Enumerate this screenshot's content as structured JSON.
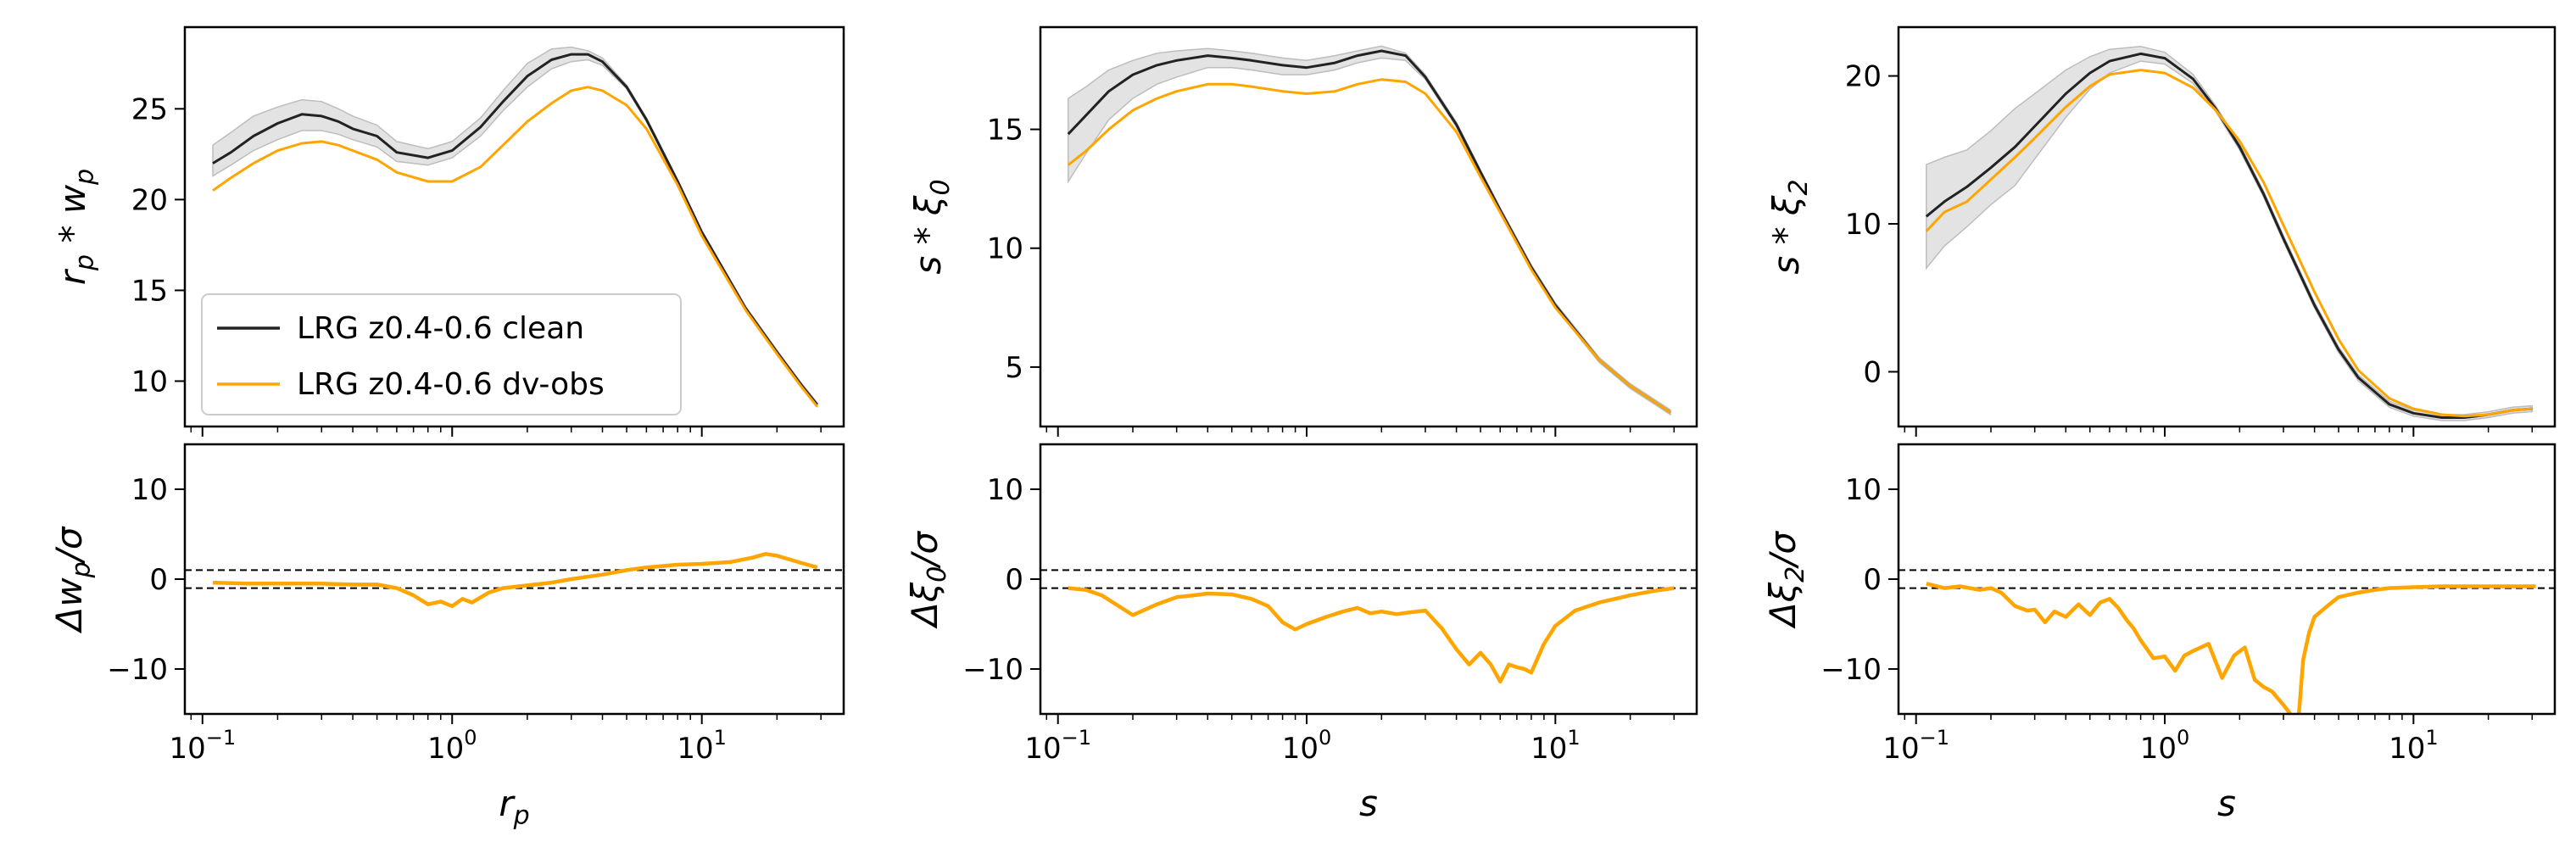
{
  "colors": {
    "clean": "#222222",
    "dvobs": "#FFA500",
    "band": "#d9d9d9",
    "frame": "#000000"
  },
  "legend": {
    "placement": "lower-left",
    "entries": [
      "LRG z0.4-0.6 clean",
      "LRG z0.4-0.6 dv-obs"
    ]
  },
  "chart_data": [
    {
      "type": "line",
      "panel": "top-left",
      "xscale": "log",
      "xlim": [
        0.085,
        37
      ],
      "ylim": [
        7.5,
        29.5
      ],
      "xticks": [
        {
          "v": 0.1,
          "m": "10",
          "e": "−1"
        },
        {
          "v": 1,
          "m": "10",
          "e": "0"
        },
        {
          "v": 10,
          "m": "10",
          "e": "1"
        }
      ],
      "yticks": [
        10,
        15,
        20,
        25
      ],
      "xlabel": "",
      "ylabel": {
        "base": "r",
        "sub": "p",
        "op": " * ",
        "base2": "w",
        "sub2": "p"
      },
      "x": [
        0.11,
        0.13,
        0.16,
        0.2,
        0.25,
        0.3,
        0.35,
        0.4,
        0.5,
        0.6,
        0.8,
        1.0,
        1.3,
        1.6,
        2.0,
        2.5,
        3.0,
        3.5,
        4.0,
        5.0,
        6.0,
        8.0,
        10.0,
        15.0,
        20.0,
        25.0,
        29.0
      ],
      "series": [
        {
          "name": "LRG z0.4-0.6 clean",
          "values": [
            22.0,
            22.6,
            23.5,
            24.2,
            24.7,
            24.6,
            24.3,
            23.9,
            23.5,
            22.6,
            22.3,
            22.7,
            24.0,
            25.4,
            26.8,
            27.7,
            28.0,
            28.0,
            27.6,
            26.2,
            24.4,
            21.0,
            18.2,
            14.0,
            11.6,
            9.8,
            8.7
          ],
          "band_upper": [
            23.0,
            23.7,
            24.6,
            25.1,
            25.5,
            25.4,
            25.0,
            24.6,
            24.1,
            23.2,
            22.8,
            23.2,
            24.5,
            26.0,
            27.5,
            28.3,
            28.4,
            28.2,
            27.8,
            26.3,
            24.5,
            21.1,
            18.3,
            14.1,
            11.7,
            9.9,
            8.8
          ],
          "band_lower": [
            21.3,
            21.9,
            22.7,
            23.3,
            23.8,
            23.8,
            23.6,
            23.3,
            22.9,
            22.1,
            21.9,
            22.3,
            23.5,
            24.9,
            26.2,
            27.2,
            27.6,
            27.7,
            27.4,
            26.1,
            24.3,
            20.9,
            18.1,
            13.9,
            11.5,
            9.7,
            8.6
          ]
        },
        {
          "name": "LRG z0.4-0.6 dv-obs",
          "values": [
            20.5,
            21.2,
            22.0,
            22.7,
            23.1,
            23.2,
            23.0,
            22.7,
            22.2,
            21.5,
            21.0,
            21.0,
            21.8,
            23.0,
            24.3,
            25.3,
            26.0,
            26.2,
            26.0,
            25.2,
            23.9,
            20.8,
            18.0,
            13.9,
            11.5,
            9.7,
            8.6
          ]
        }
      ]
    },
    {
      "type": "line",
      "panel": "top-middle",
      "xscale": "log",
      "xlim": [
        0.085,
        37
      ],
      "ylim": [
        2.5,
        19.3
      ],
      "xticks": [
        {
          "v": 0.1,
          "m": "10",
          "e": "−1"
        },
        {
          "v": 1,
          "m": "10",
          "e": "0"
        },
        {
          "v": 10,
          "m": "10",
          "e": "1"
        }
      ],
      "yticks": [
        5,
        10,
        15
      ],
      "xlabel": "",
      "ylabel": {
        "base": "s",
        "op": " * ",
        "base2": "ξ",
        "sub2": "0"
      },
      "x": [
        0.11,
        0.13,
        0.16,
        0.2,
        0.25,
        0.3,
        0.4,
        0.5,
        0.6,
        0.8,
        1.0,
        1.3,
        1.6,
        2.0,
        2.5,
        3.0,
        4.0,
        5.0,
        6.0,
        8.0,
        10.0,
        15.0,
        20.0,
        29.0
      ],
      "series": [
        {
          "name": "LRG z0.4-0.6 clean",
          "values": [
            14.8,
            15.6,
            16.6,
            17.3,
            17.7,
            17.9,
            18.1,
            18.0,
            17.9,
            17.7,
            17.6,
            17.8,
            18.1,
            18.3,
            18.1,
            17.2,
            15.2,
            13.2,
            11.6,
            9.2,
            7.6,
            5.3,
            4.2,
            3.1
          ],
          "band_upper": [
            16.3,
            16.8,
            17.5,
            17.9,
            18.2,
            18.3,
            18.4,
            18.3,
            18.2,
            18.0,
            17.9,
            18.1,
            18.3,
            18.5,
            18.2,
            17.3,
            15.3,
            13.3,
            11.7,
            9.3,
            7.7,
            5.4,
            4.3,
            3.2
          ],
          "band_lower": [
            12.8,
            14.0,
            15.4,
            16.3,
            16.9,
            17.2,
            17.6,
            17.6,
            17.5,
            17.3,
            17.3,
            17.5,
            17.8,
            18.0,
            17.9,
            17.1,
            15.1,
            13.1,
            11.5,
            9.1,
            7.5,
            5.2,
            4.1,
            3.0
          ]
        },
        {
          "name": "LRG z0.4-0.6 dv-obs",
          "values": [
            13.5,
            14.1,
            15.0,
            15.8,
            16.3,
            16.6,
            16.9,
            16.9,
            16.8,
            16.6,
            16.5,
            16.6,
            16.9,
            17.1,
            17.0,
            16.5,
            14.9,
            13.0,
            11.5,
            9.1,
            7.5,
            5.3,
            4.2,
            3.1
          ]
        }
      ]
    },
    {
      "type": "line",
      "panel": "top-right",
      "xscale": "log",
      "xlim": [
        0.085,
        37
      ],
      "ylim": [
        -3.7,
        23.3
      ],
      "xticks": [
        {
          "v": 0.1,
          "m": "10",
          "e": "−1"
        },
        {
          "v": 1,
          "m": "10",
          "e": "0"
        },
        {
          "v": 10,
          "m": "10",
          "e": "1"
        }
      ],
      "yticks": [
        0,
        10,
        20
      ],
      "xlabel": "",
      "ylabel": {
        "base": "s",
        "op": " * ",
        "base2": "ξ",
        "sub2": "2"
      },
      "x": [
        0.11,
        0.13,
        0.16,
        0.2,
        0.25,
        0.3,
        0.4,
        0.5,
        0.6,
        0.8,
        1.0,
        1.3,
        1.6,
        2.0,
        2.5,
        3.0,
        4.0,
        5.0,
        6.0,
        8.0,
        10.0,
        13.0,
        16.0,
        20.0,
        25.0,
        30.0
      ],
      "series": [
        {
          "name": "LRG z0.4-0.6 clean",
          "values": [
            10.5,
            11.5,
            12.5,
            13.8,
            15.2,
            16.6,
            18.8,
            20.2,
            21.0,
            21.5,
            21.2,
            19.8,
            17.8,
            15.2,
            12.0,
            9.0,
            4.5,
            1.5,
            -0.4,
            -2.2,
            -2.8,
            -3.1,
            -3.1,
            -2.9,
            -2.6,
            -2.5
          ],
          "band_upper": [
            14.0,
            14.5,
            15.0,
            16.3,
            17.8,
            18.8,
            20.4,
            21.3,
            21.8,
            22.0,
            21.6,
            20.1,
            18.0,
            15.4,
            12.2,
            9.2,
            4.7,
            1.7,
            -0.2,
            -2.0,
            -2.6,
            -2.9,
            -2.9,
            -2.7,
            -2.4,
            -2.3
          ],
          "band_lower": [
            7.0,
            8.5,
            9.8,
            11.3,
            12.6,
            14.4,
            17.2,
            19.1,
            20.2,
            21.0,
            20.8,
            19.5,
            17.6,
            15.0,
            11.8,
            8.8,
            4.3,
            1.3,
            -0.6,
            -2.4,
            -3.0,
            -3.3,
            -3.3,
            -3.1,
            -2.8,
            -2.7
          ]
        },
        {
          "name": "LRG z0.4-0.6 dv-obs",
          "values": [
            9.5,
            10.8,
            11.5,
            13.0,
            14.5,
            15.8,
            17.9,
            19.3,
            20.1,
            20.4,
            20.2,
            19.2,
            17.7,
            15.6,
            12.8,
            9.9,
            5.4,
            2.2,
            0.1,
            -1.8,
            -2.5,
            -2.9,
            -3.0,
            -2.9,
            -2.6,
            -2.5
          ]
        }
      ]
    },
    {
      "type": "line",
      "panel": "bottom-left",
      "xscale": "log",
      "xlim": [
        0.085,
        37
      ],
      "ylim": [
        -15,
        15
      ],
      "xticks": [
        {
          "v": 0.1,
          "m": "10",
          "e": "−1"
        },
        {
          "v": 1,
          "m": "10",
          "e": "0"
        },
        {
          "v": 10,
          "m": "10",
          "e": "1"
        }
      ],
      "yticks": [
        {
          "v": -10,
          "t": "−10"
        },
        {
          "v": 0,
          "t": "0"
        },
        {
          "v": 10,
          "t": "10"
        }
      ],
      "hlines": [
        1,
        -1
      ],
      "xlabel": {
        "base": "r",
        "sub": "p"
      },
      "ylabel": {
        "base": "Δw",
        "sub": "p",
        "tail": "/σ"
      },
      "x": [
        0.11,
        0.15,
        0.2,
        0.3,
        0.4,
        0.5,
        0.6,
        0.7,
        0.8,
        0.9,
        1.0,
        1.1,
        1.2,
        1.4,
        1.6,
        2.0,
        2.5,
        3.0,
        4.0,
        5.0,
        6.0,
        8.0,
        10.0,
        13.0,
        16.0,
        18.0,
        20.0,
        25.0,
        29.0
      ],
      "series": [
        {
          "name": "LRG z0.4-0.6 dv-obs",
          "values": [
            -0.4,
            -0.5,
            -0.5,
            -0.5,
            -0.6,
            -0.6,
            -1.0,
            -1.8,
            -2.8,
            -2.5,
            -3.0,
            -2.2,
            -2.6,
            -1.5,
            -1.0,
            -0.7,
            -0.4,
            0.0,
            0.5,
            1.0,
            1.3,
            1.6,
            1.7,
            1.9,
            2.4,
            2.8,
            2.6,
            1.8,
            1.3
          ]
        }
      ]
    },
    {
      "type": "line",
      "panel": "bottom-middle",
      "xscale": "log",
      "xlim": [
        0.085,
        37
      ],
      "ylim": [
        -15,
        15
      ],
      "xticks": [
        {
          "v": 0.1,
          "m": "10",
          "e": "−1"
        },
        {
          "v": 1,
          "m": "10",
          "e": "0"
        },
        {
          "v": 10,
          "m": "10",
          "e": "1"
        }
      ],
      "yticks": [
        {
          "v": -10,
          "t": "−10"
        },
        {
          "v": 0,
          "t": "0"
        },
        {
          "v": 10,
          "t": "10"
        }
      ],
      "hlines": [
        1,
        -1
      ],
      "xlabel": {
        "base": "s"
      },
      "ylabel": {
        "base": "Δξ",
        "sub": "0",
        "tail": "/σ"
      },
      "x": [
        0.11,
        0.13,
        0.15,
        0.18,
        0.2,
        0.25,
        0.3,
        0.35,
        0.4,
        0.5,
        0.6,
        0.7,
        0.8,
        0.9,
        1.0,
        1.2,
        1.4,
        1.6,
        1.8,
        2.0,
        2.3,
        2.6,
        3.0,
        3.5,
        4.0,
        4.5,
        5.0,
        5.5,
        6.0,
        6.5,
        7.0,
        7.5,
        8.0,
        9.0,
        10.0,
        12.0,
        15.0,
        20.0,
        25.0,
        30.0
      ],
      "series": [
        {
          "name": "LRG z0.4-0.6 dv-obs",
          "values": [
            -1.0,
            -1.2,
            -1.8,
            -3.2,
            -4.0,
            -2.8,
            -2.0,
            -1.8,
            -1.6,
            -1.7,
            -2.2,
            -3.0,
            -4.8,
            -5.6,
            -5.0,
            -4.2,
            -3.6,
            -3.2,
            -3.8,
            -3.6,
            -3.9,
            -3.7,
            -3.5,
            -5.5,
            -7.8,
            -9.5,
            -8.2,
            -9.5,
            -11.4,
            -9.5,
            -9.8,
            -10.0,
            -10.4,
            -7.2,
            -5.2,
            -3.5,
            -2.6,
            -1.8,
            -1.3,
            -1.0
          ]
        }
      ]
    },
    {
      "type": "line",
      "panel": "bottom-right",
      "xscale": "log",
      "xlim": [
        0.085,
        37
      ],
      "ylim": [
        -15,
        15
      ],
      "xticks": [
        {
          "v": 0.1,
          "m": "10",
          "e": "−1"
        },
        {
          "v": 1,
          "m": "10",
          "e": "0"
        },
        {
          "v": 10,
          "m": "10",
          "e": "1"
        }
      ],
      "yticks": [
        {
          "v": -10,
          "t": "−10"
        },
        {
          "v": 0,
          "t": "0"
        },
        {
          "v": 10,
          "t": "10"
        }
      ],
      "hlines": [
        1,
        -1
      ],
      "xlabel": {
        "base": "s"
      },
      "ylabel": {
        "base": "Δξ",
        "sub": "2",
        "tail": "/σ"
      },
      "x": [
        0.11,
        0.13,
        0.15,
        0.18,
        0.2,
        0.22,
        0.25,
        0.28,
        0.3,
        0.33,
        0.36,
        0.4,
        0.45,
        0.5,
        0.55,
        0.6,
        0.65,
        0.7,
        0.75,
        0.8,
        0.9,
        1.0,
        1.1,
        1.2,
        1.3,
        1.5,
        1.7,
        1.9,
        2.1,
        2.3,
        2.5,
        2.7,
        3.0,
        3.3,
        3.45,
        3.6,
        3.8,
        4.0,
        4.5,
        5.0,
        6.0,
        7.0,
        8.0,
        10.0,
        13.0,
        18.0,
        25.0,
        31.0
      ],
      "series": [
        {
          "name": "LRG z0.4-0.6 dv-obs",
          "values": [
            -0.5,
            -1.0,
            -0.8,
            -1.2,
            -1.0,
            -1.5,
            -3.0,
            -3.5,
            -3.4,
            -4.8,
            -3.6,
            -4.2,
            -2.8,
            -4.0,
            -2.6,
            -2.2,
            -3.2,
            -4.5,
            -5.5,
            -6.8,
            -8.8,
            -8.6,
            -10.2,
            -8.5,
            -8.0,
            -7.2,
            -11.0,
            -8.5,
            -7.6,
            -11.2,
            -12.0,
            -12.5,
            -14.0,
            -15.5,
            -15.5,
            -9.0,
            -6.0,
            -4.2,
            -3.0,
            -2.0,
            -1.5,
            -1.2,
            -1.0,
            -0.9,
            -0.8,
            -0.8,
            -0.8,
            -0.8
          ]
        }
      ]
    }
  ]
}
